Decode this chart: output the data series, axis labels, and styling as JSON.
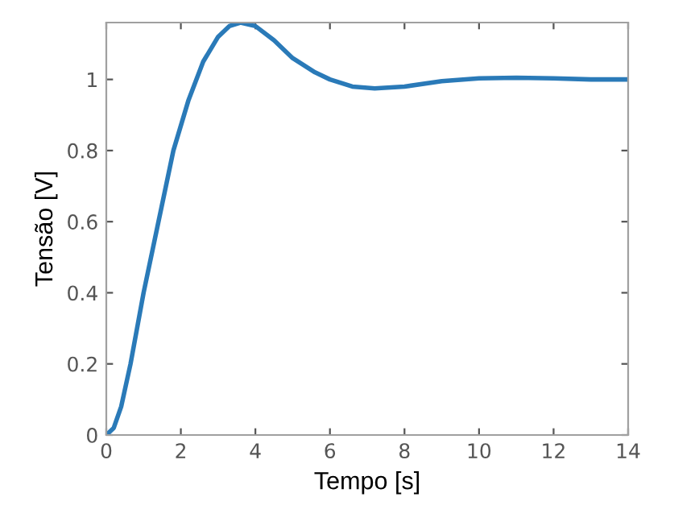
{
  "chart_data": {
    "type": "line",
    "xlabel": "Tempo [s]",
    "ylabel": "Tensão [V]",
    "xlim": [
      0,
      14
    ],
    "ylim": [
      0,
      1.16
    ],
    "xticks": [
      0,
      2,
      4,
      6,
      8,
      10,
      12,
      14
    ],
    "yticks": [
      0,
      0.2,
      0.4,
      0.6,
      0.8,
      1
    ],
    "grid": false,
    "legend": false,
    "marker": "none",
    "line_style": "solid",
    "series": [
      {
        "color": "#2a7ab8",
        "x": [
          0,
          0.2,
          0.4,
          0.65,
          1.0,
          1.4,
          1.8,
          2.2,
          2.6,
          3.0,
          3.3,
          3.6,
          4.0,
          4.5,
          5.0,
          5.6,
          6.0,
          6.6,
          7.2,
          8.0,
          9.0,
          10.0,
          11.0,
          12.0,
          13.0,
          14.0
        ],
        "values": [
          0,
          0.02,
          0.08,
          0.2,
          0.4,
          0.6,
          0.8,
          0.94,
          1.05,
          1.12,
          1.15,
          1.16,
          1.15,
          1.11,
          1.06,
          1.02,
          1.0,
          0.98,
          0.975,
          0.98,
          0.995,
          1.003,
          1.005,
          1.003,
          1.0,
          1.0
        ]
      }
    ]
  }
}
